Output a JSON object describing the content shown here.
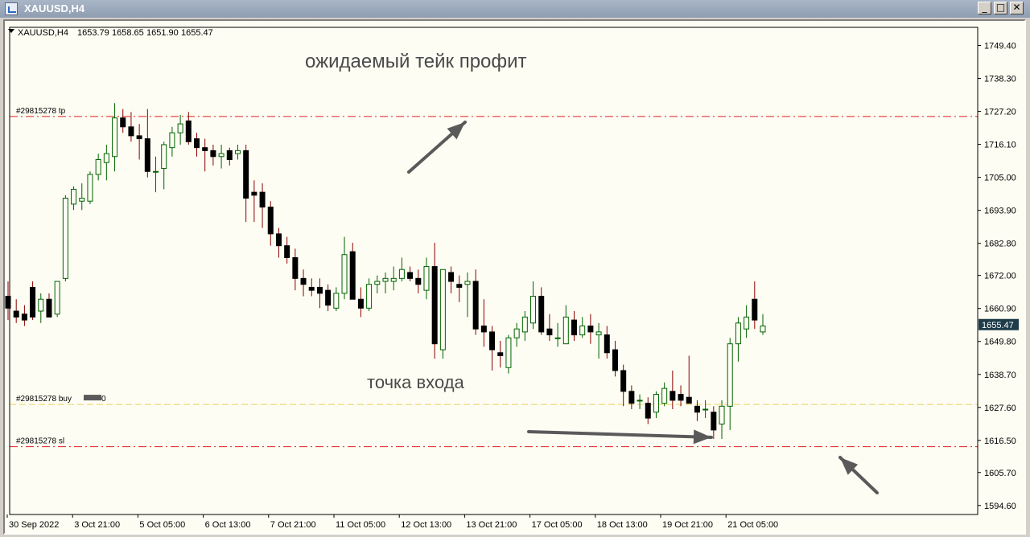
{
  "window": {
    "title": "XAUUSD,H4"
  },
  "chart_info": {
    "symbol_tf": "XAUUSD,H4",
    "open": "1653.79",
    "high": "1658.65",
    "low": "1651.90",
    "close": "1655.47"
  },
  "annotations": {
    "tp_note": "ожидаемый тейк профит",
    "entry_note": "точка входа"
  },
  "levels": [
    {
      "label": "#29815278 tp",
      "price": 1725.5,
      "color": "#e02020"
    },
    {
      "label": "#29815278 buy",
      "label_suffix": "0",
      "price": 1628.6,
      "color": "#f0d060"
    },
    {
      "label": "#29815278 sl",
      "price": 1614.4,
      "color": "#e02020"
    }
  ],
  "price_axis": {
    "ticks": [
      "1749.40",
      "1738.30",
      "1727.20",
      "1716.10",
      "1705.00",
      "1693.90",
      "1682.80",
      "1672.00",
      "1660.90",
      "1649.80",
      "1638.70",
      "1627.60",
      "1616.50",
      "1605.70",
      "1594.60"
    ],
    "current_price": "1655.47"
  },
  "time_axis": {
    "labels": [
      "30 Sep 2022",
      "3 Oct 21:00",
      "5 Oct 05:00",
      "6 Oct 13:00",
      "7 Oct 21:00",
      "11 Oct 05:00",
      "12 Oct 13:00",
      "13 Oct 21:00",
      "17 Oct 05:00",
      "18 Oct 13:00",
      "19 Oct 21:00",
      "21 Oct 05:00"
    ]
  },
  "colors": {
    "bull": "#fdfdf3",
    "bear": "#000000",
    "wick_up": "#006400",
    "wick_down": "#8b0000",
    "grid": "#c8c8c8",
    "arrow": "#5a5a5a"
  },
  "chart_data": {
    "type": "candlestick",
    "symbol": "XAUUSD",
    "timeframe": "H4",
    "ylim": [
      1593,
      1755
    ],
    "candles": [
      [
        1665,
        1670,
        1657,
        1661
      ],
      [
        1660,
        1664,
        1656,
        1658
      ],
      [
        1659,
        1662,
        1655,
        1657
      ],
      [
        1668,
        1670,
        1657,
        1658
      ],
      [
        1660,
        1666,
        1656,
        1664
      ],
      [
        1664,
        1666,
        1658,
        1658
      ],
      [
        1659,
        1670,
        1658,
        1670
      ],
      [
        1671,
        1699,
        1670,
        1698
      ],
      [
        1696,
        1702,
        1694,
        1701
      ],
      [
        1697,
        1703,
        1694,
        1698
      ],
      [
        1697,
        1707,
        1696,
        1706
      ],
      [
        1706,
        1713,
        1704,
        1711
      ],
      [
        1710,
        1716,
        1704,
        1713
      ],
      [
        1712,
        1730,
        1707,
        1725
      ],
      [
        1725,
        1728,
        1720,
        1722
      ],
      [
        1722,
        1727,
        1717,
        1719
      ],
      [
        1719,
        1723,
        1711,
        1718
      ],
      [
        1718,
        1728,
        1705,
        1707
      ],
      [
        1707,
        1712,
        1700,
        1707
      ],
      [
        1708,
        1717,
        1701,
        1716
      ],
      [
        1715,
        1722,
        1712,
        1720
      ],
      [
        1720,
        1726,
        1716,
        1723
      ],
      [
        1724,
        1727,
        1716,
        1717
      ],
      [
        1718,
        1720,
        1712,
        1715
      ],
      [
        1715,
        1718,
        1707,
        1714
      ],
      [
        1714,
        1716,
        1709,
        1712
      ],
      [
        1712,
        1716,
        1708,
        1713
      ],
      [
        1714,
        1715,
        1709,
        1711
      ],
      [
        1713,
        1716,
        1711,
        1714
      ],
      [
        1714,
        1716,
        1690,
        1698
      ],
      [
        1700,
        1704,
        1690,
        1699
      ],
      [
        1700,
        1703,
        1688,
        1695
      ],
      [
        1695,
        1697,
        1682,
        1686
      ],
      [
        1686,
        1688,
        1678,
        1682
      ],
      [
        1682,
        1685,
        1676,
        1678
      ],
      [
        1678,
        1681,
        1667,
        1671
      ],
      [
        1671,
        1674,
        1665,
        1669
      ],
      [
        1668,
        1671,
        1665,
        1667
      ],
      [
        1668,
        1671,
        1661,
        1666
      ],
      [
        1667,
        1669,
        1660,
        1662
      ],
      [
        1661,
        1668,
        1660,
        1666
      ],
      [
        1666,
        1685,
        1664,
        1679
      ],
      [
        1680,
        1683,
        1664,
        1664
      ],
      [
        1664,
        1668,
        1658,
        1661
      ],
      [
        1661,
        1671,
        1660,
        1669
      ],
      [
        1669,
        1672,
        1666,
        1670
      ],
      [
        1670,
        1673,
        1666,
        1671
      ],
      [
        1670,
        1675,
        1667,
        1671
      ],
      [
        1671,
        1678,
        1670,
        1674
      ],
      [
        1673,
        1675,
        1670,
        1671
      ],
      [
        1671,
        1674,
        1666,
        1669
      ],
      [
        1667,
        1678,
        1664,
        1675
      ],
      [
        1675,
        1683,
        1644,
        1649
      ],
      [
        1647,
        1674,
        1644,
        1674
      ],
      [
        1673,
        1675,
        1666,
        1670
      ],
      [
        1669,
        1672,
        1663,
        1668
      ],
      [
        1669,
        1673,
        1658,
        1670
      ],
      [
        1670,
        1674,
        1652,
        1654
      ],
      [
        1655,
        1664,
        1648,
        1653
      ],
      [
        1653,
        1655,
        1640,
        1647
      ],
      [
        1646,
        1650,
        1641,
        1645
      ],
      [
        1641,
        1652,
        1639,
        1651
      ],
      [
        1651,
        1656,
        1648,
        1654
      ],
      [
        1653,
        1660,
        1650,
        1658
      ],
      [
        1656,
        1670,
        1654,
        1665
      ],
      [
        1665,
        1668,
        1652,
        1653
      ],
      [
        1654,
        1659,
        1650,
        1652
      ],
      [
        1651,
        1656,
        1648,
        1651
      ],
      [
        1649,
        1662,
        1649,
        1658
      ],
      [
        1657,
        1660,
        1650,
        1652
      ],
      [
        1652,
        1658,
        1651,
        1655
      ],
      [
        1655,
        1659,
        1649,
        1653
      ],
      [
        1652,
        1656,
        1644,
        1653
      ],
      [
        1652,
        1655,
        1644,
        1646
      ],
      [
        1647,
        1650,
        1638,
        1640
      ],
      [
        1640,
        1642,
        1628,
        1633
      ],
      [
        1633,
        1635,
        1627,
        1629
      ],
      [
        1630,
        1632,
        1627,
        1630
      ],
      [
        1629,
        1631,
        1622,
        1624
      ],
      [
        1626,
        1633,
        1624,
        1632
      ],
      [
        1629,
        1636,
        1628,
        1634
      ],
      [
        1633,
        1640,
        1627,
        1630
      ],
      [
        1632,
        1635,
        1628,
        1630
      ],
      [
        1631,
        1645,
        1629,
        1629
      ],
      [
        1628,
        1630,
        1623,
        1626
      ],
      [
        1627,
        1630,
        1624,
        1627
      ],
      [
        1626,
        1628,
        1617,
        1620
      ],
      [
        1622,
        1630,
        1617,
        1628
      ],
      [
        1628,
        1651,
        1620,
        1649
      ],
      [
        1649,
        1658,
        1643,
        1656
      ],
      [
        1654,
        1662,
        1651,
        1658
      ],
      [
        1664,
        1670,
        1654,
        1657
      ],
      [
        1653,
        1659,
        1652,
        1655
      ]
    ]
  }
}
